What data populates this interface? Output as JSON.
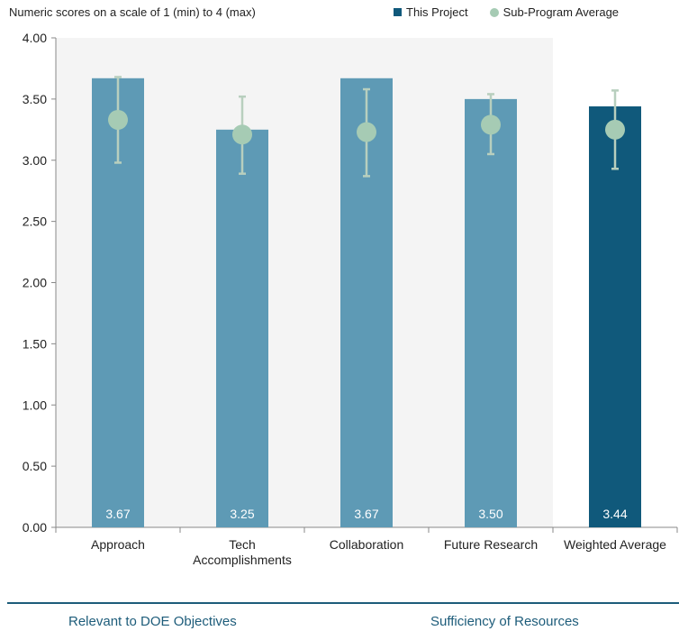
{
  "colors": {
    "project_bar": "#5e9ab5",
    "weighted_bar": "#10597b",
    "avg_marker": "#a6cbb4",
    "errorbar": "#b8cfbe",
    "plot_bg": "#f4f4f4",
    "footer_accent": "#1d5c7a"
  },
  "chart_data": {
    "type": "bar",
    "title": "",
    "subtitle": "Numeric scores on a scale of 1 (min) to 4 (max)",
    "xlabel": "",
    "ylabel": "",
    "ylim": [
      0,
      4
    ],
    "yticks": [
      "0.00",
      "0.50",
      "1.00",
      "1.50",
      "2.00",
      "2.50",
      "3.00",
      "3.50",
      "4.00"
    ],
    "grid": false,
    "legend_position": "top-right",
    "categories": [
      "Approach",
      "Tech Accomplishments",
      "Collaboration",
      "Future Research",
      "Weighted Average"
    ],
    "category_lines": [
      [
        "Approach"
      ],
      [
        "Tech",
        "Accomplishments"
      ],
      [
        "Collaboration"
      ],
      [
        "Future Research"
      ],
      [
        "Weighted Average"
      ]
    ],
    "series": [
      {
        "name": "This Project",
        "values": [
          3.67,
          3.25,
          3.67,
          3.5,
          3.44
        ],
        "labels": [
          "3.67",
          "3.25",
          "3.67",
          "3.50",
          "3.44"
        ]
      },
      {
        "name": "Sub-Program Average",
        "values": [
          3.33,
          3.21,
          3.23,
          3.29,
          3.25
        ],
        "error_low": [
          2.98,
          2.89,
          2.87,
          3.05,
          2.93
        ],
        "error_high": [
          3.68,
          3.52,
          3.58,
          3.54,
          3.57
        ]
      }
    ]
  },
  "footer": {
    "left": "Relevant to DOE Objectives",
    "right": "Sufficiency of Resources"
  }
}
